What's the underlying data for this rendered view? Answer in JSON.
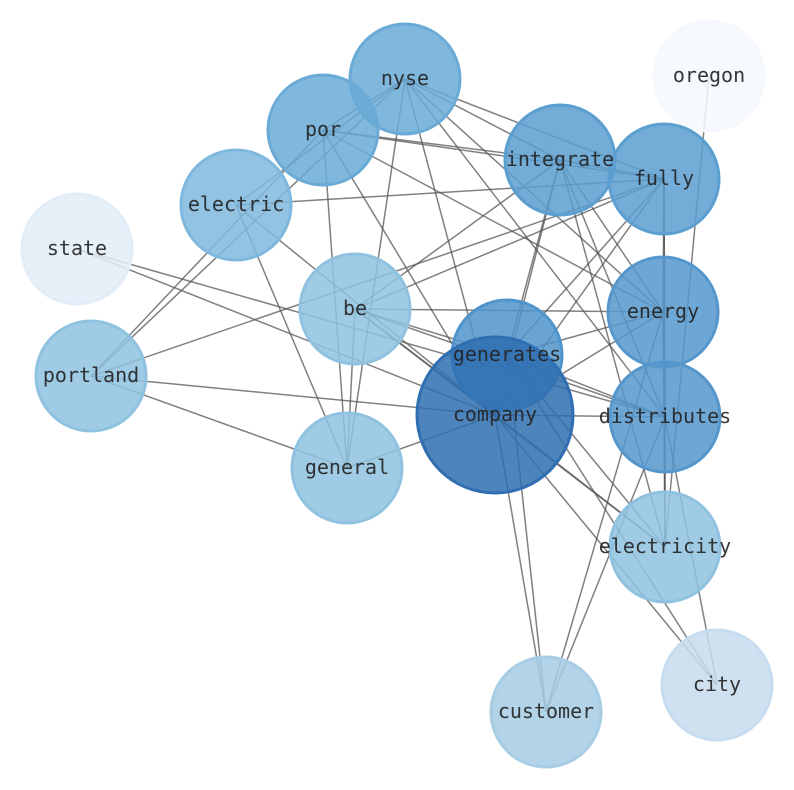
{
  "diagram": {
    "type": "network",
    "nodes": [
      {
        "id": "nyse",
        "label": "nyse",
        "color": "#6aaad6"
      },
      {
        "id": "oregon",
        "label": "oregon",
        "color": "#f5f9fe"
      },
      {
        "id": "por",
        "label": "por",
        "color": "#6aaad6"
      },
      {
        "id": "integrate",
        "label": "integrate",
        "color": "#5a9fd0"
      },
      {
        "id": "fully",
        "label": "fully",
        "color": "#5a9fd0"
      },
      {
        "id": "electric",
        "label": "electric",
        "color": "#7fb8de"
      },
      {
        "id": "state",
        "label": "state",
        "color": "#e2edf8"
      },
      {
        "id": "be",
        "label": "be",
        "color": "#8fc2e0"
      },
      {
        "id": "energy",
        "label": "energy",
        "color": "#5597cc"
      },
      {
        "id": "generates",
        "label": "generates",
        "color": "#4f94cb"
      },
      {
        "id": "portland",
        "label": "portland",
        "color": "#8fc2e0"
      },
      {
        "id": "company",
        "label": "company",
        "color": "#2f6eb0"
      },
      {
        "id": "distributes",
        "label": "distributes",
        "color": "#5597cc"
      },
      {
        "id": "general",
        "label": "general",
        "color": "#8fc2e0"
      },
      {
        "id": "electricity",
        "label": "electricity",
        "color": "#8fc2e0"
      },
      {
        "id": "city",
        "label": "city",
        "color": "#c7dcef"
      },
      {
        "id": "customer",
        "label": "customer",
        "color": "#a6cde4"
      }
    ],
    "edges": [
      [
        "nyse",
        "por"
      ],
      [
        "nyse",
        "integrate"
      ],
      [
        "nyse",
        "fully"
      ],
      [
        "nyse",
        "energy"
      ],
      [
        "nyse",
        "portland"
      ],
      [
        "nyse",
        "electric"
      ],
      [
        "nyse",
        "company"
      ],
      [
        "nyse",
        "general"
      ],
      [
        "nyse",
        "distributes"
      ],
      [
        "por",
        "integrate"
      ],
      [
        "por",
        "fully"
      ],
      [
        "por",
        "energy"
      ],
      [
        "por",
        "company"
      ],
      [
        "por",
        "general"
      ],
      [
        "por",
        "portland"
      ],
      [
        "electric",
        "fully"
      ],
      [
        "electric",
        "company"
      ],
      [
        "electric",
        "general"
      ],
      [
        "state",
        "company"
      ],
      [
        "state",
        "distributes"
      ],
      [
        "be",
        "fully"
      ],
      [
        "be",
        "integrate"
      ],
      [
        "be",
        "energy"
      ],
      [
        "be",
        "company"
      ],
      [
        "be",
        "generates"
      ],
      [
        "be",
        "distributes"
      ],
      [
        "be",
        "electricity"
      ],
      [
        "be",
        "general"
      ],
      [
        "portland",
        "company"
      ],
      [
        "portland",
        "general"
      ],
      [
        "portland",
        "fully"
      ],
      [
        "integrate",
        "fully"
      ],
      [
        "integrate",
        "energy"
      ],
      [
        "integrate",
        "electricity"
      ],
      [
        "integrate",
        "distributes"
      ],
      [
        "integrate",
        "company"
      ],
      [
        "integrate",
        "generates"
      ],
      [
        "fully",
        "energy"
      ],
      [
        "fully",
        "distributes"
      ],
      [
        "fully",
        "electricity"
      ],
      [
        "fully",
        "company"
      ],
      [
        "fully",
        "generates"
      ],
      [
        "energy",
        "distributes"
      ],
      [
        "energy",
        "generates"
      ],
      [
        "energy",
        "company"
      ],
      [
        "energy",
        "customer"
      ],
      [
        "energy",
        "electricity"
      ],
      [
        "oregon",
        "electricity"
      ],
      [
        "company",
        "distributes"
      ],
      [
        "company",
        "customer"
      ],
      [
        "company",
        "city"
      ],
      [
        "company",
        "electricity"
      ],
      [
        "company",
        "general"
      ],
      [
        "generates",
        "customer"
      ],
      [
        "generates",
        "distributes"
      ],
      [
        "generates",
        "electricity"
      ],
      [
        "generates",
        "city"
      ],
      [
        "distributes",
        "customer"
      ],
      [
        "distributes",
        "city"
      ],
      [
        "distributes",
        "electricity"
      ]
    ]
  }
}
